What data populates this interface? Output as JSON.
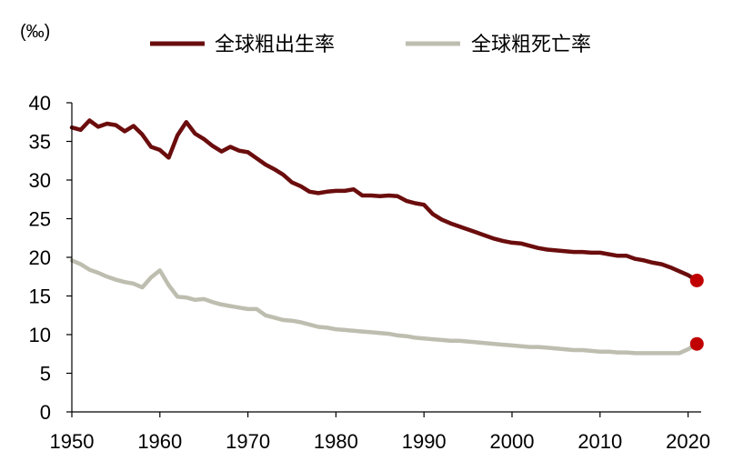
{
  "chart_data": {
    "type": "line",
    "title": "",
    "xlabel": "",
    "ylabel": "(‰)",
    "xlim": [
      1950,
      2021
    ],
    "ylim": [
      0,
      40
    ],
    "x_ticks": [
      "1950",
      "1960",
      "1970",
      "1980",
      "1990",
      "2000",
      "2010",
      "2020"
    ],
    "y_ticks": [
      "0",
      "5",
      "10",
      "15",
      "20",
      "25",
      "30",
      "35",
      "40"
    ],
    "grid": false,
    "legend_position": "top",
    "series": [
      {
        "name": "全球粗出生率",
        "color": "#6B0D0D",
        "end_marker_color": "#C00000",
        "x": [
          1950,
          1951,
          1952,
          1953,
          1954,
          1955,
          1956,
          1957,
          1958,
          1959,
          1960,
          1961,
          1962,
          1963,
          1964,
          1965,
          1966,
          1967,
          1968,
          1969,
          1970,
          1971,
          1972,
          1973,
          1974,
          1975,
          1976,
          1977,
          1978,
          1979,
          1980,
          1981,
          1982,
          1983,
          1984,
          1985,
          1986,
          1987,
          1988,
          1989,
          1990,
          1991,
          1992,
          1993,
          1994,
          1995,
          1996,
          1997,
          1998,
          1999,
          2000,
          2001,
          2002,
          2003,
          2004,
          2005,
          2006,
          2007,
          2008,
          2009,
          2010,
          2011,
          2012,
          2013,
          2014,
          2015,
          2016,
          2017,
          2018,
          2019,
          2020,
          2021
        ],
        "values": [
          36.8,
          36.5,
          37.7,
          36.9,
          37.3,
          37.1,
          36.3,
          37.0,
          35.9,
          34.3,
          33.9,
          32.9,
          35.8,
          37.5,
          36.0,
          35.3,
          34.4,
          33.7,
          34.3,
          33.8,
          33.6,
          32.8,
          32.0,
          31.4,
          30.7,
          29.7,
          29.2,
          28.5,
          28.3,
          28.5,
          28.6,
          28.6,
          28.8,
          28.0,
          28.0,
          27.9,
          28.0,
          27.9,
          27.3,
          27.0,
          26.8,
          25.6,
          24.9,
          24.4,
          24.0,
          23.6,
          23.2,
          22.8,
          22.4,
          22.1,
          21.9,
          21.8,
          21.5,
          21.2,
          21.0,
          20.9,
          20.8,
          20.7,
          20.7,
          20.6,
          20.6,
          20.4,
          20.2,
          20.2,
          19.8,
          19.6,
          19.3,
          19.1,
          18.7,
          18.2,
          17.7,
          17.0
        ]
      },
      {
        "name": "全球粗死亡率",
        "color": "#BEBEB0",
        "end_marker_color": "#C00000",
        "x": [
          1950,
          1951,
          1952,
          1953,
          1954,
          1955,
          1956,
          1957,
          1958,
          1959,
          1960,
          1961,
          1962,
          1963,
          1964,
          1965,
          1966,
          1967,
          1968,
          1969,
          1970,
          1971,
          1972,
          1973,
          1974,
          1975,
          1976,
          1977,
          1978,
          1979,
          1980,
          1981,
          1982,
          1983,
          1984,
          1985,
          1986,
          1987,
          1988,
          1989,
          1990,
          1991,
          1992,
          1993,
          1994,
          1995,
          1996,
          1997,
          1998,
          1999,
          2000,
          2001,
          2002,
          2003,
          2004,
          2005,
          2006,
          2007,
          2008,
          2009,
          2010,
          2011,
          2012,
          2013,
          2014,
          2015,
          2016,
          2017,
          2018,
          2019,
          2020,
          2021
        ],
        "values": [
          19.6,
          19.1,
          18.4,
          18.0,
          17.5,
          17.1,
          16.8,
          16.6,
          16.1,
          17.4,
          18.3,
          16.4,
          14.9,
          14.8,
          14.5,
          14.6,
          14.2,
          13.9,
          13.7,
          13.5,
          13.3,
          13.3,
          12.5,
          12.2,
          11.9,
          11.8,
          11.6,
          11.3,
          11.0,
          10.9,
          10.7,
          10.6,
          10.5,
          10.4,
          10.3,
          10.2,
          10.1,
          9.9,
          9.8,
          9.6,
          9.5,
          9.4,
          9.3,
          9.2,
          9.2,
          9.1,
          9.0,
          8.9,
          8.8,
          8.7,
          8.6,
          8.5,
          8.4,
          8.4,
          8.3,
          8.2,
          8.1,
          8.0,
          8.0,
          7.9,
          7.8,
          7.8,
          7.7,
          7.7,
          7.6,
          7.6,
          7.6,
          7.6,
          7.6,
          7.6,
          8.1,
          8.8
        ]
      }
    ]
  }
}
